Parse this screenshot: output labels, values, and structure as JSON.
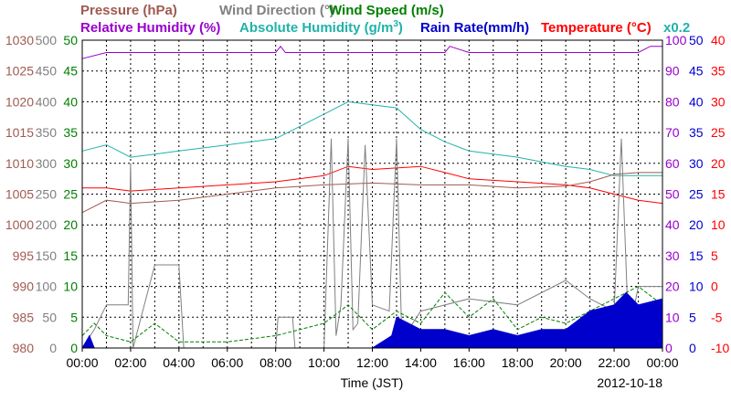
{
  "chart_data": {
    "type": "line",
    "xlabel": "Time (JST)",
    "date": "2012-10-18",
    "x_ticks": [
      "00:00",
      "02:00",
      "04:00",
      "06:00",
      "08:00",
      "10:00",
      "12:00",
      "14:00",
      "16:00",
      "18:00",
      "20:00",
      "22:00",
      "00:00"
    ],
    "grid": true,
    "legend_top": [
      {
        "text": "Pressure (hPa)",
        "color": "#a05a50"
      },
      {
        "text": "Wind Direction (°)",
        "color": "#808080"
      },
      {
        "text": "Wind Speed (m/s)",
        "color": "#008000"
      }
    ],
    "legend_bottom": [
      {
        "text": "Relative Humidity (%)",
        "color": "#9900cc"
      },
      {
        "text": "Absolute Humidity (g/m",
        "sup": "3",
        "tail": ")",
        "color": "#20b2aa"
      },
      {
        "text": "Rain Rate(mm/h)",
        "color": "#0000cc"
      },
      {
        "text": "Temperature (°C)",
        "color": "#ff0000"
      },
      {
        "text": "x0.2",
        "color": "#20b2aa"
      }
    ],
    "axes": {
      "pressure": {
        "label": "Pressure (hPa)",
        "color": "#a05a50",
        "ticks": [
          "1030",
          "1025",
          "1020",
          "1015",
          "1010",
          "1005",
          "1000",
          "995",
          "990",
          "985",
          "980"
        ],
        "range": [
          980,
          1030
        ]
      },
      "wind_direction": {
        "label": "Wind Direction (°)",
        "color": "#808080",
        "ticks": [
          "500",
          "450",
          "400",
          "350",
          "300",
          "250",
          "200",
          "150",
          "100",
          "50",
          "0"
        ],
        "range": [
          0,
          500
        ]
      },
      "wind_speed": {
        "label": "Wind Speed (m/s)",
        "color": "#008000",
        "ticks": [
          "50",
          "45",
          "40",
          "35",
          "30",
          "25",
          "20",
          "15",
          "10",
          "5",
          "0"
        ],
        "range": [
          0,
          50
        ]
      },
      "humidity": {
        "label": "Relative Humidity (%)",
        "color": "#9900cc",
        "ticks": [
          "100",
          "90",
          "80",
          "70",
          "60",
          "50",
          "40",
          "30",
          "20",
          "10",
          "0"
        ],
        "range": [
          0,
          100
        ]
      },
      "rain_rate": {
        "label": "Rain Rate(mm/h)",
        "color": "#0000cc",
        "ticks": [
          "50",
          "45",
          "40",
          "35",
          "30",
          "25",
          "20",
          "15",
          "10",
          "5",
          "0"
        ],
        "range": [
          0,
          50
        ]
      },
      "temperature": {
        "label": "Temperature (°C)",
        "color": "#ff0000",
        "ticks": [
          "40",
          "35",
          "30",
          "25",
          "20",
          "15",
          "10",
          "5",
          "0",
          "-5",
          "-10"
        ],
        "range": [
          -10,
          40
        ]
      }
    },
    "series": [
      {
        "name": "Relative Humidity (%)",
        "color": "#9900cc",
        "axis": "humidity",
        "x": [
          0,
          1,
          2,
          4,
          6,
          8,
          8.2,
          8.4,
          10,
          12,
          12.5,
          14,
          15,
          15.2,
          16,
          18,
          20,
          22,
          23,
          23.5,
          24
        ],
        "y": [
          94,
          96,
          96,
          96,
          96,
          96,
          98,
          96,
          96,
          96,
          96,
          96,
          96,
          98,
          96,
          96,
          96,
          96,
          96,
          98,
          98
        ]
      },
      {
        "name": "Absolute Humidity (g/m3)",
        "color": "#20b2aa",
        "axis": "humidity",
        "x": [
          0,
          1,
          2,
          3,
          4,
          6,
          8,
          9,
          10,
          11,
          12,
          13,
          14,
          15,
          16,
          18,
          20,
          21,
          22,
          23,
          24
        ],
        "y": [
          64,
          66,
          62,
          63,
          64,
          66,
          68,
          72,
          76,
          80,
          79,
          78,
          71,
          67,
          64,
          62,
          59,
          58,
          56,
          56,
          56
        ]
      },
      {
        "name": "Temperature (°C)",
        "color": "#ff0000",
        "axis": "temperature",
        "x": [
          0,
          1,
          2,
          4,
          6,
          8,
          10,
          11,
          12,
          14,
          15,
          16,
          18,
          20,
          21,
          22,
          23,
          24
        ],
        "y": [
          16,
          16,
          15.5,
          16,
          16.5,
          17,
          18,
          19.5,
          19,
          19.5,
          18.5,
          17.5,
          17,
          16.5,
          16,
          15,
          14,
          13.5
        ]
      },
      {
        "name": "Pressure (hPa)",
        "color": "#a05a50",
        "axis": "pressure",
        "x": [
          0,
          1,
          2,
          4,
          6,
          8,
          10,
          12,
          14,
          16,
          18,
          20,
          21,
          22,
          23,
          24
        ],
        "y": [
          1002,
          1004,
          1003.5,
          1004,
          1005,
          1006,
          1006.5,
          1006.8,
          1006.5,
          1006.5,
          1006,
          1006.3,
          1007,
          1008.2,
          1008.5,
          1008.5
        ]
      },
      {
        "name": "Wind Direction (°)",
        "color": "#808080",
        "axis": "wind_direction",
        "x": [
          0,
          0.5,
          1,
          1.9,
          2,
          2.1,
          3,
          4,
          4.2,
          6,
          8,
          8.1,
          8.7,
          8.8,
          10,
          10.3,
          10.5,
          10.7,
          11,
          11.2,
          11.4,
          11.7,
          12,
          12.7,
          13,
          13.2,
          13.5,
          14,
          16,
          18,
          20,
          21,
          22,
          22.3,
          22.6,
          23,
          24
        ],
        "y": [
          0,
          30,
          70,
          70,
          300,
          0,
          135,
          135,
          0,
          0,
          0,
          50,
          50,
          0,
          0,
          340,
          20,
          70,
          340,
          30,
          40,
          330,
          70,
          60,
          340,
          40,
          30,
          60,
          80,
          70,
          110,
          80,
          60,
          340,
          20,
          100,
          100
        ]
      },
      {
        "name": "Wind Speed (m/s)",
        "color": "#008000",
        "axis": "wind_speed",
        "x": [
          0,
          0.5,
          1,
          2,
          3,
          4,
          6,
          8,
          10,
          11,
          12,
          13,
          14,
          15,
          16,
          17,
          18,
          19,
          20,
          21,
          22,
          23,
          24
        ],
        "y": [
          2,
          4,
          2,
          1,
          4,
          1,
          1,
          2,
          4,
          7,
          3,
          6,
          4,
          9,
          5,
          8,
          3,
          5,
          4,
          6,
          8,
          10,
          7
        ]
      },
      {
        "name": "Rain Rate(mm/h)",
        "color": "#0000cc",
        "axis": "rain_rate",
        "x": [
          0,
          0.3,
          0.5,
          10,
          11,
          12,
          12.8,
          13,
          13.5,
          14,
          15,
          16,
          17,
          18,
          19,
          20,
          21,
          22,
          22.5,
          23,
          24
        ],
        "y": [
          0,
          2,
          0,
          0,
          0,
          0,
          2,
          5,
          4,
          3,
          3,
          2,
          3,
          2,
          3,
          3,
          6,
          7,
          9,
          7,
          8
        ]
      }
    ]
  }
}
